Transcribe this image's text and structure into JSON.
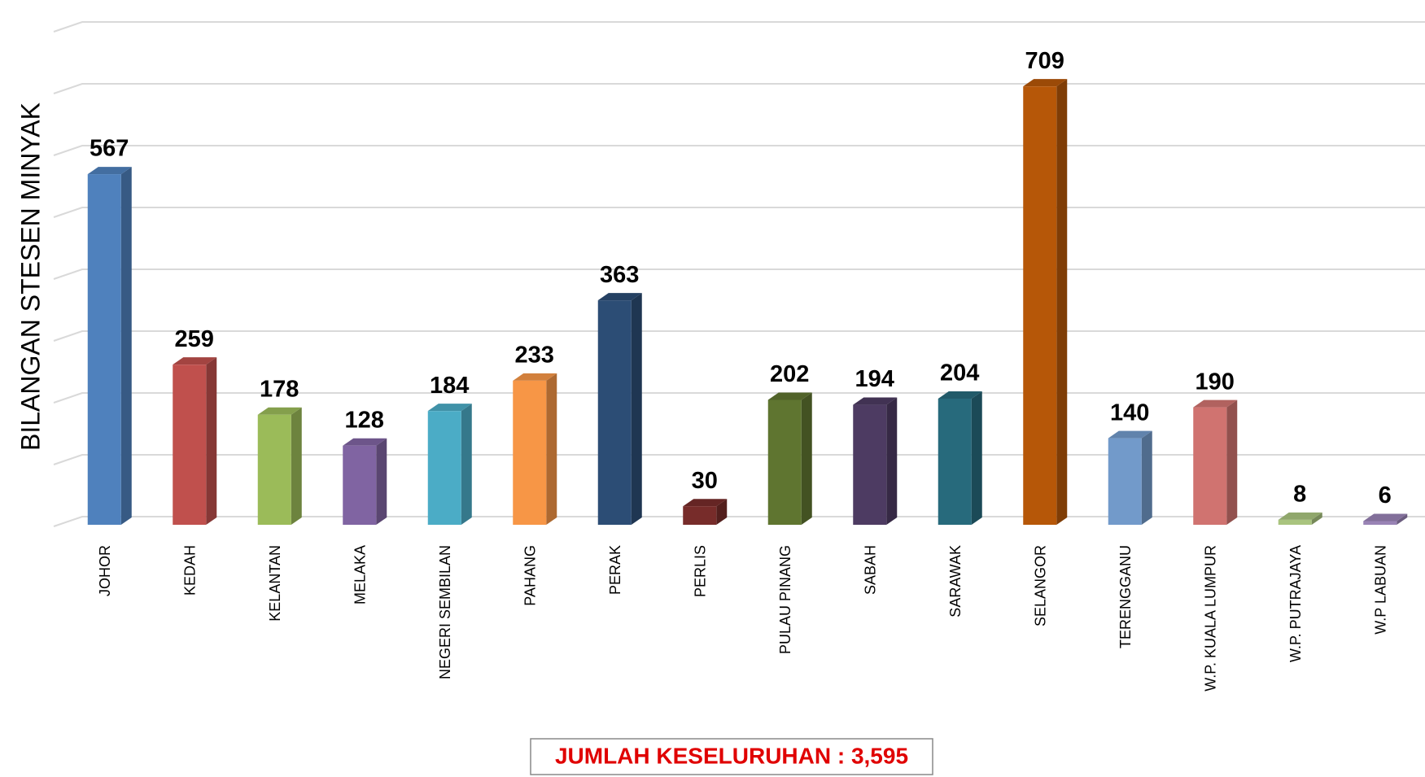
{
  "chart_data": {
    "type": "bar3d",
    "y_label": "BILANGAN STESEN MINYAK",
    "categories": [
      "JOHOR",
      "KEDAH",
      "KELANTAN",
      "MELAKA",
      "NEGERI SEMBILAN",
      "PAHANG",
      "PERAK",
      "PERLIS",
      "PULAU PINANG",
      "SABAH",
      "SARAWAK",
      "SELANGOR",
      "TERENGGANU",
      "W.P. KUALA LUMPUR",
      "W.P. PUTRAJAYA",
      "W.P LABUAN"
    ],
    "values": [
      567,
      259,
      178,
      128,
      184,
      233,
      363,
      30,
      202,
      194,
      204,
      709,
      140,
      190,
      8,
      6
    ],
    "colors": [
      "#4f81bd",
      "#c0504d",
      "#9bbb59",
      "#8064a2",
      "#4bacc6",
      "#f79646",
      "#2c4d75",
      "#772c2a",
      "#5f7530",
      "#4d3b62",
      "#276a7c",
      "#b65708",
      "#729aca",
      "#d07370",
      "#a9c47f",
      "#9983b5"
    ],
    "ylim": [
      0,
      800
    ],
    "yticks": [
      0,
      100,
      200,
      300,
      400,
      500,
      600,
      700,
      800
    ],
    "grid": true,
    "annotation": "JUMLAH KESELURUHAN : 3,595"
  }
}
